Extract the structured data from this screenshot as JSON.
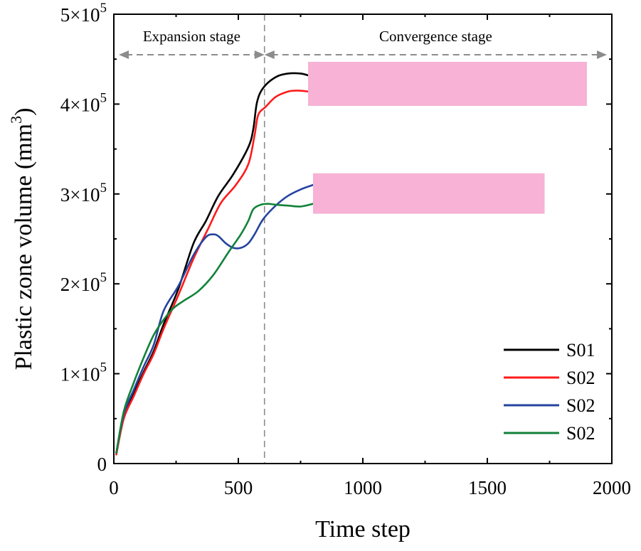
{
  "chart_data": {
    "type": "line",
    "title": "",
    "xlabel": "Time step",
    "ylabel": "Plastic zone volume (mm³)",
    "ylabel_base": "Plastic zone volume (mm",
    "ylabel_sup": "3",
    "ylabel_close": ")",
    "xlim": [
      0,
      2000
    ],
    "ylim": [
      0,
      500000
    ],
    "x_ticks": [
      0,
      500,
      1000,
      1500,
      2000
    ],
    "x_tick_labels": [
      "0",
      "500",
      "1000",
      "1500",
      "2000"
    ],
    "y_ticks": [
      0,
      100000,
      200000,
      300000,
      400000,
      500000
    ],
    "y_tick_labels": [
      {
        "mant": "0",
        "exp": ""
      },
      {
        "mant": "1×10",
        "exp": "5"
      },
      {
        "mant": "2×10",
        "exp": "5"
      },
      {
        "mant": "3×10",
        "exp": "5"
      },
      {
        "mant": "4×10",
        "exp": "5"
      },
      {
        "mant": "5×10",
        "exp": "5"
      }
    ],
    "grid": false,
    "legend_position": "bottom-right",
    "stage_divider_x": 605,
    "stages": [
      {
        "label": "Expansion stage",
        "x_start": 20,
        "x_end": 605
      },
      {
        "label": "Convergence stage",
        "x_start": 605,
        "x_end": 1980
      }
    ],
    "occlusions": [
      {
        "x_start": 780,
        "x_end": 1900,
        "y_start": 398000,
        "y_end": 447000,
        "color": "#f7b2d6"
      },
      {
        "x_start": 800,
        "x_end": 1730,
        "y_start": 278000,
        "y_end": 323000,
        "color": "#f7b2d6"
      }
    ],
    "series": [
      {
        "name": "S01",
        "color": "#000000",
        "x": [
          10,
          40,
          80,
          120,
          160,
          200,
          260,
          320,
          370,
          420,
          480,
          540,
          560,
          575,
          600,
          650,
          700,
          750,
          780
        ],
        "y": [
          12000,
          52000,
          78000,
          102000,
          125000,
          155000,
          195000,
          245000,
          270000,
          298000,
          322000,
          352000,
          372000,
          402000,
          418000,
          430000,
          434000,
          434000,
          432000
        ]
      },
      {
        "name": "S02",
        "color": "#ff1a1a",
        "x": [
          10,
          40,
          80,
          120,
          160,
          200,
          260,
          320,
          380,
          430,
          490,
          540,
          565,
          580,
          610,
          650,
          700,
          740,
          780
        ],
        "y": [
          10000,
          50000,
          75000,
          100000,
          122000,
          150000,
          188000,
          228000,
          262000,
          290000,
          310000,
          333000,
          365000,
          388000,
          397000,
          408000,
          414000,
          415000,
          414000
        ]
      },
      {
        "name": "S02",
        "color": "#2444a0",
        "x": [
          10,
          40,
          80,
          120,
          160,
          200,
          260,
          320,
          370,
          400,
          420,
          450,
          480,
          510,
          540,
          565,
          600,
          650,
          700,
          750,
          800
        ],
        "y": [
          12000,
          55000,
          82000,
          108000,
          132000,
          170000,
          198000,
          232000,
          252000,
          255000,
          253000,
          245000,
          240000,
          240000,
          245000,
          255000,
          272000,
          287000,
          298000,
          305000,
          310000
        ]
      },
      {
        "name": "S02",
        "color": "#12823a",
        "x": [
          10,
          40,
          80,
          120,
          160,
          200,
          240,
          280,
          340,
          400,
          460,
          510,
          540,
          560,
          590,
          620,
          650,
          700,
          750,
          800
        ],
        "y": [
          12000,
          58000,
          90000,
          118000,
          143000,
          160000,
          173000,
          181000,
          192000,
          210000,
          235000,
          255000,
          270000,
          283000,
          288000,
          289000,
          288000,
          287000,
          286000,
          289000
        ]
      }
    ]
  }
}
